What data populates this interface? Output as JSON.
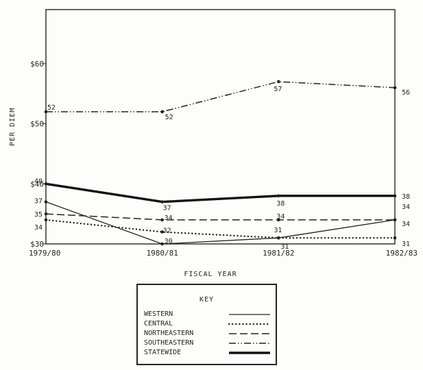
{
  "chart_data": {
    "type": "line",
    "title": "",
    "xlabel": "FISCAL YEAR",
    "ylabel": "PER DIEM",
    "categories": [
      "1979/80",
      "1980/81",
      "1981/82",
      "1982/83"
    ],
    "y_ticks": [
      {
        "value": 30,
        "label": "$30"
      },
      {
        "value": 40,
        "label": "$40"
      },
      {
        "value": 50,
        "label": "$50"
      },
      {
        "value": 60,
        "label": "$60"
      }
    ],
    "ylim": [
      30,
      69
    ],
    "legend_position": "bottom-center",
    "legend_title": "KEY",
    "series": [
      {
        "name": "WESTERN",
        "values": [
          37,
          30,
          31,
          34
        ],
        "labels": [
          "37",
          "30",
          "31",
          "34"
        ],
        "style": "solid",
        "color": "#222222"
      },
      {
        "name": "CENTRAL",
        "values": [
          34,
          32,
          31,
          31
        ],
        "labels": [
          "34",
          "32",
          "31",
          "31"
        ],
        "style": "dotted",
        "color": "#222222"
      },
      {
        "name": "NORTHEASTERN",
        "values": [
          35,
          34,
          34,
          34
        ],
        "labels": [
          "35",
          "34",
          "34",
          "34"
        ],
        "style": "dashed",
        "color": "#222222"
      },
      {
        "name": "SOUTHEASTERN",
        "values": [
          52,
          52,
          57,
          56
        ],
        "labels": [
          "52",
          "52",
          "57",
          "56"
        ],
        "style": "dash-dot-dot",
        "color": "#222222"
      },
      {
        "name": "STATEWIDE",
        "values": [
          40,
          37,
          38,
          38
        ],
        "labels": [
          "40",
          "37",
          "38",
          "38"
        ],
        "style": "thick",
        "color": "#111111"
      }
    ]
  }
}
